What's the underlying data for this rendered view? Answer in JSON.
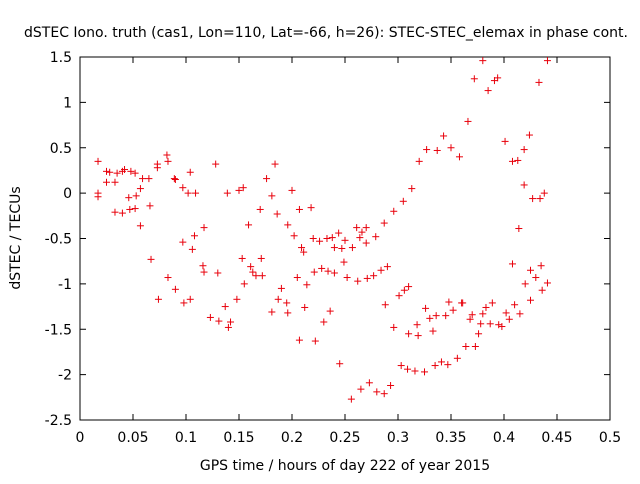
{
  "chart_data": {
    "type": "scatter",
    "title": "dSTEC Iono. truth (cas1, Lon=110, Lat=-66, h=26): STEC-STEC_elemax in phase cont.",
    "xlabel": "GPS time / hours of day 222 of year 2015",
    "ylabel": "dSTEC  / TECUs",
    "xlim": [
      0,
      0.5
    ],
    "ylim": [
      -2.5,
      1.5
    ],
    "x_ticks": [
      0,
      0.05,
      0.1,
      0.15,
      0.2,
      0.25,
      0.3,
      0.35,
      0.4,
      0.45,
      0.5
    ],
    "x_tick_labels": [
      "0",
      "0.05",
      "0.1",
      "0.15",
      "0.2",
      "0.25",
      "0.3",
      "0.35",
      "0.4",
      "0.45",
      "0.5"
    ],
    "y_ticks": [
      1.5,
      1,
      0.5,
      0,
      -0.5,
      -1,
      -1.5,
      -2,
      -2.5
    ],
    "y_tick_labels": [
      "1.5",
      "1",
      "0.5",
      "0",
      "-0.5",
      "-1",
      "-1.5",
      "-2",
      "-2.5"
    ],
    "grid": false,
    "marker": "+",
    "colors": {
      "points": "#e8000b",
      "axes": "#000000"
    },
    "series": [
      {
        "points": [
          [
            0.017,
            0.35
          ],
          [
            0.017,
            -0.04
          ],
          [
            0.017,
            0.0
          ],
          [
            0.025,
            0.24
          ],
          [
            0.025,
            0.12
          ],
          [
            0.028,
            0.23
          ],
          [
            0.033,
            0.12
          ],
          [
            0.033,
            -0.21
          ],
          [
            0.035,
            0.22
          ],
          [
            0.04,
            0.24
          ],
          [
            0.04,
            -0.22
          ],
          [
            0.042,
            0.26
          ],
          [
            0.046,
            -0.05
          ],
          [
            0.047,
            -0.18
          ],
          [
            0.048,
            0.24
          ],
          [
            0.052,
            0.22
          ],
          [
            0.052,
            -0.17
          ],
          [
            0.053,
            -0.03
          ],
          [
            0.057,
            0.05
          ],
          [
            0.057,
            -0.36
          ],
          [
            0.059,
            0.16
          ],
          [
            0.065,
            0.16
          ],
          [
            0.066,
            -0.14
          ],
          [
            0.067,
            -0.73
          ],
          [
            0.073,
            0.28
          ],
          [
            0.073,
            0.32
          ],
          [
            0.074,
            -1.17
          ],
          [
            0.082,
            0.42
          ],
          [
            0.083,
            0.35
          ],
          [
            0.083,
            -0.93
          ],
          [
            0.089,
            0.16
          ],
          [
            0.09,
            0.15
          ],
          [
            0.09,
            -1.06
          ],
          [
            0.097,
            0.06
          ],
          [
            0.097,
            -0.54
          ],
          [
            0.098,
            -1.21
          ],
          [
            0.102,
            0.0
          ],
          [
            0.104,
            0.23
          ],
          [
            0.104,
            -1.17
          ],
          [
            0.106,
            -0.62
          ],
          [
            0.108,
            -0.47
          ],
          [
            0.109,
            0.0
          ],
          [
            0.116,
            -0.8
          ],
          [
            0.117,
            -0.38
          ],
          [
            0.117,
            -0.87
          ],
          [
            0.123,
            -1.37
          ],
          [
            0.128,
            0.32
          ],
          [
            0.13,
            -0.88
          ],
          [
            0.131,
            -1.41
          ],
          [
            0.137,
            -1.25
          ],
          [
            0.139,
            0.0
          ],
          [
            0.14,
            -1.48
          ],
          [
            0.142,
            -1.42
          ],
          [
            0.148,
            -1.17
          ],
          [
            0.15,
            0.03
          ],
          [
            0.153,
            -0.72
          ],
          [
            0.154,
            0.06
          ],
          [
            0.155,
            -1.0
          ],
          [
            0.159,
            -0.35
          ],
          [
            0.161,
            -0.81
          ],
          [
            0.163,
            -0.87
          ],
          [
            0.166,
            -0.91
          ],
          [
            0.17,
            -0.18
          ],
          [
            0.171,
            -0.72
          ],
          [
            0.172,
            -0.91
          ],
          [
            0.176,
            0.16
          ],
          [
            0.181,
            -0.03
          ],
          [
            0.181,
            -1.31
          ],
          [
            0.184,
            0.32
          ],
          [
            0.186,
            -0.23
          ],
          [
            0.187,
            -1.17
          ],
          [
            0.19,
            -1.05
          ],
          [
            0.195,
            -1.21
          ],
          [
            0.196,
            -1.32
          ],
          [
            0.196,
            -0.35
          ],
          [
            0.2,
            0.03
          ],
          [
            0.202,
            -0.47
          ],
          [
            0.205,
            -0.93
          ],
          [
            0.207,
            -0.18
          ],
          [
            0.207,
            -1.62
          ],
          [
            0.209,
            -0.6
          ],
          [
            0.211,
            -0.65
          ],
          [
            0.212,
            -1.26
          ],
          [
            0.214,
            -1.01
          ],
          [
            0.218,
            -0.16
          ],
          [
            0.22,
            -0.5
          ],
          [
            0.221,
            -0.87
          ],
          [
            0.222,
            -1.63
          ],
          [
            0.226,
            -0.53
          ],
          [
            0.228,
            -0.83
          ],
          [
            0.23,
            -1.42
          ],
          [
            0.233,
            -0.5
          ],
          [
            0.234,
            -0.86
          ],
          [
            0.236,
            -1.3
          ],
          [
            0.238,
            -0.49
          ],
          [
            0.24,
            -0.88
          ],
          [
            0.24,
            -0.6
          ],
          [
            0.244,
            -0.44
          ],
          [
            0.245,
            -1.88
          ],
          [
            0.247,
            -0.61
          ],
          [
            0.249,
            -0.76
          ],
          [
            0.25,
            -0.52
          ],
          [
            0.252,
            -0.93
          ],
          [
            0.256,
            -2.27
          ],
          [
            0.257,
            -0.6
          ],
          [
            0.261,
            -0.38
          ],
          [
            0.262,
            -0.97
          ],
          [
            0.264,
            -0.49
          ],
          [
            0.265,
            -2.16
          ],
          [
            0.266,
            -0.43
          ],
          [
            0.27,
            -0.38
          ],
          [
            0.27,
            -0.55
          ],
          [
            0.271,
            -0.94
          ],
          [
            0.273,
            -2.09
          ],
          [
            0.277,
            -0.91
          ],
          [
            0.279,
            -0.48
          ],
          [
            0.28,
            -2.19
          ],
          [
            0.284,
            -0.85
          ],
          [
            0.287,
            -0.33
          ],
          [
            0.287,
            -2.21
          ],
          [
            0.288,
            -1.23
          ],
          [
            0.29,
            -0.81
          ],
          [
            0.293,
            -2.12
          ],
          [
            0.296,
            -1.48
          ],
          [
            0.296,
            -0.2
          ],
          [
            0.301,
            -1.13
          ],
          [
            0.303,
            -1.9
          ],
          [
            0.305,
            -0.09
          ],
          [
            0.306,
            -1.07
          ],
          [
            0.309,
            -1.94
          ],
          [
            0.31,
            -1.55
          ],
          [
            0.31,
            -1.03
          ],
          [
            0.313,
            0.05
          ],
          [
            0.316,
            -1.96
          ],
          [
            0.318,
            -1.45
          ],
          [
            0.319,
            -1.57
          ],
          [
            0.32,
            0.35
          ],
          [
            0.325,
            -1.97
          ],
          [
            0.326,
            -1.27
          ],
          [
            0.327,
            0.48
          ],
          [
            0.33,
            -1.38
          ],
          [
            0.333,
            -1.52
          ],
          [
            0.335,
            -1.9
          ],
          [
            0.336,
            -1.35
          ],
          [
            0.337,
            0.47
          ],
          [
            0.341,
            -1.86
          ],
          [
            0.343,
            0.63
          ],
          [
            0.345,
            -1.35
          ],
          [
            0.347,
            -1.89
          ],
          [
            0.348,
            -1.2
          ],
          [
            0.35,
            0.5
          ],
          [
            0.352,
            -1.29
          ],
          [
            0.356,
            -1.82
          ],
          [
            0.358,
            0.4
          ],
          [
            0.36,
            -1.21
          ],
          [
            0.361,
            -1.21
          ],
          [
            0.364,
            -1.69
          ],
          [
            0.366,
            0.79
          ],
          [
            0.368,
            -1.39
          ],
          [
            0.37,
            -1.34
          ],
          [
            0.372,
            1.26
          ],
          [
            0.373,
            -1.69
          ],
          [
            0.376,
            -1.55
          ],
          [
            0.378,
            -1.44
          ],
          [
            0.38,
            1.46
          ],
          [
            0.38,
            -1.33
          ],
          [
            0.383,
            -1.26
          ],
          [
            0.385,
            1.13
          ],
          [
            0.387,
            -1.44
          ],
          [
            0.389,
            -1.21
          ],
          [
            0.391,
            1.24
          ],
          [
            0.394,
            1.27
          ],
          [
            0.395,
            -1.45
          ],
          [
            0.398,
            -1.47
          ],
          [
            0.401,
            0.57
          ],
          [
            0.402,
            -1.32
          ],
          [
            0.405,
            -1.39
          ],
          [
            0.408,
            0.35
          ],
          [
            0.408,
            -0.78
          ],
          [
            0.41,
            -1.23
          ],
          [
            0.413,
            0.36
          ],
          [
            0.414,
            -0.39
          ],
          [
            0.415,
            -1.33
          ],
          [
            0.419,
            0.09
          ],
          [
            0.419,
            0.48
          ],
          [
            0.42,
            -1.0
          ],
          [
            0.424,
            0.64
          ],
          [
            0.425,
            -0.85
          ],
          [
            0.425,
            -1.18
          ],
          [
            0.427,
            -0.06
          ],
          [
            0.43,
            -0.93
          ],
          [
            0.433,
            1.22
          ],
          [
            0.434,
            -0.06
          ],
          [
            0.435,
            -0.8
          ],
          [
            0.436,
            -1.07
          ],
          [
            0.438,
            0.0
          ],
          [
            0.441,
            1.46
          ],
          [
            0.441,
            -0.99
          ]
        ]
      }
    ]
  }
}
